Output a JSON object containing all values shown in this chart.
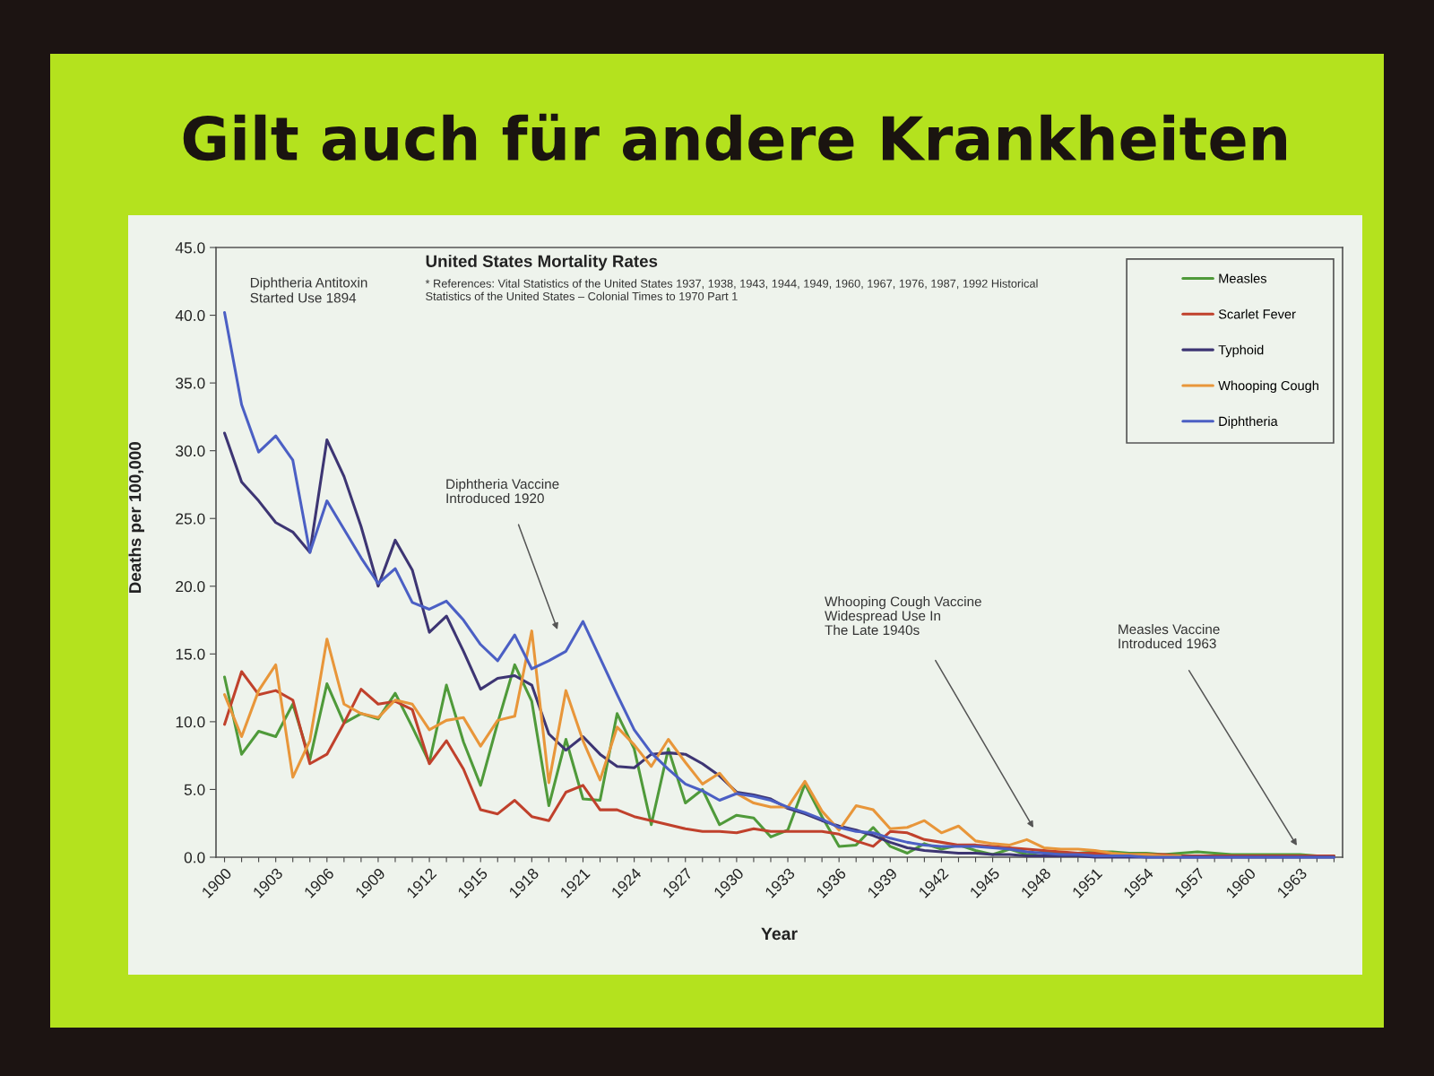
{
  "chart_data": {
    "type": "line",
    "title": "Gilt auch für andere Krankheiten",
    "subtitle": "United States Mortality Rates",
    "xlabel": "Year",
    "ylabel": "Deaths per 100,000",
    "annotations": [
      "Diphtheria Antitoxin\nStarted Use 1894",
      "* References: Vital Statistics of the United States 1937, 1938, 1943, 1944, 1949, 1960, 1967, 1976, 1987, 1992 Historical\nStatistics of the United States – Colonial Times to 1970 Part 1",
      "Diphtheria Vaccine\nIntroduced 1920",
      "Whooping Cough Vaccine\nWidespread Use In\nThe Late 1940s",
      "Measles Vaccine\nIntroduced 1963"
    ],
    "x": [
      1900,
      1901,
      1902,
      1903,
      1904,
      1905,
      1906,
      1907,
      1908,
      1909,
      1910,
      1911,
      1912,
      1913,
      1914,
      1915,
      1916,
      1917,
      1918,
      1919,
      1920,
      1921,
      1922,
      1923,
      1924,
      1925,
      1926,
      1927,
      1928,
      1929,
      1930,
      1931,
      1932,
      1933,
      1934,
      1935,
      1936,
      1937,
      1938,
      1939,
      1940,
      1941,
      1942,
      1943,
      1944,
      1945,
      1946,
      1947,
      1948,
      1949,
      1950,
      1951,
      1952,
      1953,
      1954,
      1955,
      1956,
      1957,
      1958,
      1959,
      1960,
      1961,
      1962,
      1963,
      1964,
      1965
    ],
    "series": [
      {
        "name": "Measles",
        "color": "#4f9a3a",
        "values": [
          13.3,
          7.6,
          9.3,
          8.9,
          11.3,
          7.2,
          12.8,
          9.9,
          10.6,
          10.2,
          12.1,
          9.6,
          7.0,
          12.7,
          8.5,
          5.3,
          9.9,
          14.2,
          11.5,
          3.8,
          8.7,
          4.3,
          4.2,
          10.6,
          8.0,
          2.4,
          8.0,
          4.0,
          5.0,
          2.4,
          3.1,
          2.9,
          1.5,
          2.0,
          5.4,
          3.0,
          0.8,
          0.9,
          2.2,
          0.8,
          0.3,
          1.0,
          0.6,
          0.9,
          0.5,
          0.2,
          0.6,
          0.2,
          0.4,
          0.3,
          0.3,
          0.4,
          0.4,
          0.3,
          0.3,
          0.2,
          0.3,
          0.4,
          0.3,
          0.2,
          0.2,
          0.2,
          0.2,
          0.2,
          0.1,
          0.1
        ]
      },
      {
        "name": "Scarlet Fever",
        "color": "#c0412c",
        "values": [
          9.8,
          13.7,
          12.0,
          12.3,
          11.6,
          6.9,
          7.6,
          9.9,
          12.4,
          11.3,
          11.5,
          10.9,
          6.9,
          8.6,
          6.5,
          3.5,
          3.2,
          4.2,
          3.0,
          2.7,
          4.8,
          5.3,
          3.5,
          3.5,
          3.0,
          2.7,
          2.4,
          2.1,
          1.9,
          1.9,
          1.8,
          2.1,
          1.9,
          1.9,
          1.9,
          1.9,
          1.7,
          1.2,
          0.8,
          1.9,
          1.8,
          1.3,
          1.1,
          0.9,
          0.9,
          0.8,
          0.7,
          0.6,
          0.5,
          0.4,
          0.3,
          0.3,
          0.2,
          0.2,
          0.2,
          0.2,
          0.1,
          0.1,
          0.1,
          0.1,
          0.1,
          0.1,
          0.1,
          0.1,
          0.1,
          0.1
        ]
      },
      {
        "name": "Typhoid",
        "color": "#3d3573",
        "values": [
          31.3,
          27.7,
          26.3,
          24.7,
          24.0,
          22.5,
          30.8,
          28.1,
          24.4,
          20.0,
          23.4,
          21.2,
          16.6,
          17.8,
          15.2,
          12.4,
          13.2,
          13.4,
          12.7,
          9.1,
          7.9,
          8.9,
          7.6,
          6.7,
          6.6,
          7.6,
          7.7,
          7.6,
          6.9,
          6.0,
          4.8,
          4.6,
          4.3,
          3.6,
          3.2,
          2.7,
          2.3,
          2.0,
          1.6,
          1.1,
          0.7,
          0.5,
          0.4,
          0.3,
          0.3,
          0.2,
          0.2,
          0.1,
          0.1,
          0.1,
          0.1,
          0.0,
          0.0,
          0.0,
          0.0,
          0.0,
          0.0,
          0.0,
          0.0,
          0.0,
          0.0,
          0.0,
          0.0,
          0.0,
          0.0,
          0.0
        ]
      },
      {
        "name": "Whooping Cough",
        "color": "#e8963a",
        "values": [
          12.0,
          8.9,
          12.3,
          14.2,
          5.9,
          8.6,
          16.1,
          11.3,
          10.6,
          10.3,
          11.6,
          11.3,
          9.4,
          10.1,
          10.3,
          8.2,
          10.1,
          10.4,
          16.7,
          5.5,
          12.3,
          8.6,
          5.7,
          9.6,
          8.3,
          6.7,
          8.7,
          7.0,
          5.4,
          6.2,
          4.7,
          4.0,
          3.7,
          3.7,
          5.6,
          3.4,
          2.0,
          3.8,
          3.5,
          2.1,
          2.2,
          2.7,
          1.8,
          2.3,
          1.2,
          1.0,
          0.9,
          1.3,
          0.7,
          0.6,
          0.6,
          0.5,
          0.3,
          0.2,
          0.2,
          0.1,
          0.1,
          null,
          null,
          null,
          null,
          null,
          null,
          null,
          null,
          null
        ]
      },
      {
        "name": "Diphtheria",
        "color": "#4b5fc4",
        "values": [
          40.2,
          33.4,
          29.9,
          31.1,
          29.3,
          22.5,
          26.3,
          24.2,
          22.1,
          20.2,
          21.3,
          18.8,
          18.3,
          18.9,
          17.5,
          15.7,
          14.5,
          16.4,
          13.9,
          14.5,
          15.2,
          17.4,
          14.7,
          12.0,
          9.4,
          7.7,
          6.5,
          5.4,
          4.9,
          4.2,
          4.7,
          4.5,
          4.2,
          3.7,
          3.3,
          2.8,
          2.2,
          1.9,
          1.8,
          1.4,
          1.1,
          0.9,
          0.8,
          0.8,
          0.8,
          0.7,
          0.6,
          0.4,
          0.3,
          0.2,
          0.2,
          0.1,
          0.1,
          0.1,
          0.0,
          0.0,
          0.0,
          0.0,
          0.0,
          0.0,
          0.0,
          0.0,
          0.0,
          0.0,
          0.0,
          0.0
        ]
      }
    ],
    "xlim": [
      1899.5,
      1965.5
    ],
    "xticks": [
      1900,
      {
        "value": 1901,
        "label": null
      },
      {
        "value": 1902,
        "label": null
      },
      1903,
      {
        "value": 1904,
        "label": null
      },
      {
        "value": 1905,
        "label": null
      },
      1906,
      {
        "value": 1907,
        "label": null
      },
      {
        "value": 1908,
        "label": null
      },
      1909,
      {
        "value": 1910,
        "label": null
      },
      {
        "value": 1911,
        "label": null
      },
      1912,
      {
        "value": 1913,
        "label": null
      },
      {
        "value": 1914,
        "label": null
      },
      1915,
      {
        "value": 1916,
        "label": null
      },
      {
        "value": 1917,
        "label": null
      },
      1918,
      {
        "value": 1919,
        "label": null
      },
      {
        "value": 1920,
        "label": null
      },
      1921,
      {
        "value": 1922,
        "label": null
      },
      {
        "value": 1923,
        "label": null
      },
      1924,
      {
        "value": 1925,
        "label": null
      },
      {
        "value": 1926,
        "label": null
      },
      1927,
      {
        "value": 1928,
        "label": null
      },
      {
        "value": 1929,
        "label": null
      },
      1930,
      {
        "value": 1931,
        "label": null
      },
      {
        "value": 1932,
        "label": null
      },
      1933,
      {
        "value": 1934,
        "label": null
      },
      {
        "value": 1935,
        "label": null
      },
      1936,
      {
        "value": 1937,
        "label": null
      },
      {
        "value": 1938,
        "label": null
      },
      1939,
      {
        "value": 1940,
        "label": null
      },
      {
        "value": 1941,
        "label": null
      },
      1942,
      {
        "value": 1943,
        "label": null
      },
      {
        "value": 1944,
        "label": null
      },
      1945,
      {
        "value": 1946,
        "label": null
      },
      {
        "value": 1947,
        "label": null
      },
      1948,
      {
        "value": 1949,
        "label": null
      },
      {
        "value": 1950,
        "label": null
      },
      1951,
      {
        "value": 1952,
        "label": null
      },
      {
        "value": 1953,
        "label": null
      },
      1954,
      {
        "value": 1955,
        "label": null
      },
      {
        "value": 1956,
        "label": null
      },
      1957,
      {
        "value": 1958,
        "label": null
      },
      {
        "value": 1959,
        "label": null
      },
      1960,
      {
        "value": 1961,
        "label": null
      },
      {
        "value": 1962,
        "label": null
      },
      1963,
      {
        "value": 1964,
        "label": null
      },
      {
        "value": 1965,
        "label": null
      }
    ],
    "ylim": [
      0,
      45
    ],
    "yticks": [
      {
        "value": 0,
        "label": "0.0"
      },
      {
        "value": 5,
        "label": "5.0"
      },
      {
        "value": 10,
        "label": "10.0"
      },
      {
        "value": 15,
        "label": "15.0"
      },
      {
        "value": 20,
        "label": "20.0"
      },
      {
        "value": 25,
        "label": "25.0"
      },
      {
        "value": 30,
        "label": "30.0"
      },
      {
        "value": 35,
        "label": "35.0"
      },
      {
        "value": 40,
        "label": "40.0"
      },
      {
        "value": 45,
        "label": "45.0"
      }
    ],
    "legend": "top right"
  }
}
